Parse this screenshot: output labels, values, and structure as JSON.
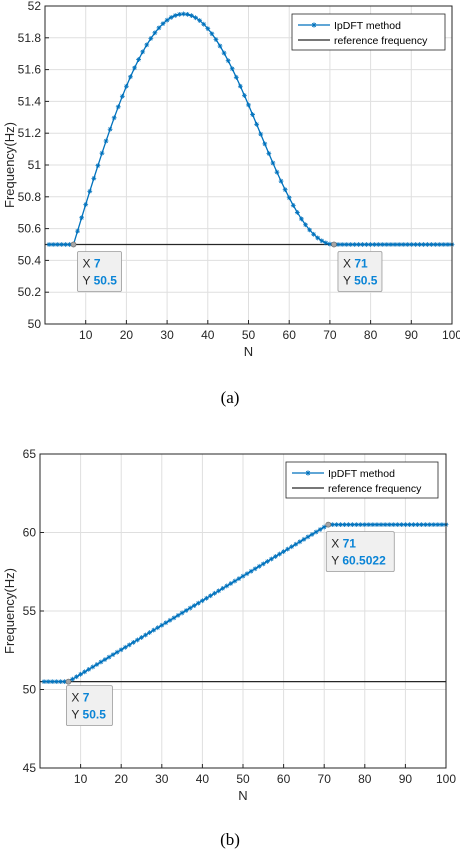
{
  "chart_data": [
    {
      "type": "line",
      "xlabel": "N",
      "ylabel": "Frequency(Hz)",
      "xlim": [
        0,
        100
      ],
      "ylim": [
        50,
        52
      ],
      "xticks": [
        10,
        20,
        30,
        40,
        50,
        60,
        70,
        80,
        90,
        100
      ],
      "yticks": [
        50,
        50.2,
        50.4,
        50.6,
        50.8,
        51,
        51.2,
        51.4,
        51.6,
        51.8,
        52
      ],
      "ytick_labels": [
        "50",
        "50.2",
        "50.4",
        "50.6",
        "50.8",
        "51",
        "51.2",
        "51.4",
        "51.6",
        "51.8",
        "52"
      ],
      "grid": true,
      "legend_position": "top-right",
      "series": [
        {
          "name": "IpDFT method",
          "color": "#0072BD",
          "marker": "star",
          "shape": "bump",
          "flat_value": 50.5,
          "rise_start": 7,
          "rise_end": 71,
          "peak_x": 34,
          "peak_value": 51.95,
          "x_range": [
            1,
            100
          ]
        },
        {
          "name": "reference frequency",
          "color": "#262626",
          "constant": 50.5
        }
      ],
      "annotations": [
        {
          "x_label": "X",
          "x_value": "7",
          "y_label": "Y",
          "y_value": "50.5",
          "point": [
            7,
            50.5
          ]
        },
        {
          "x_label": "X",
          "x_value": "71",
          "y_label": "Y",
          "y_value": "50.5",
          "point": [
            71,
            50.5
          ]
        }
      ],
      "caption": "(a)"
    },
    {
      "type": "line",
      "xlabel": "N",
      "ylabel": "Frequency(Hz)",
      "xlim": [
        0,
        100
      ],
      "ylim": [
        45,
        65
      ],
      "xticks": [
        10,
        20,
        30,
        40,
        50,
        60,
        70,
        80,
        90,
        100
      ],
      "yticks": [
        45,
        50,
        55,
        60,
        65
      ],
      "ytick_labels": [
        "45",
        "50",
        "55",
        "60",
        "65"
      ],
      "grid": true,
      "legend_position": "top-right",
      "series": [
        {
          "name": "IpDFT method",
          "color": "#0072BD",
          "marker": "star",
          "shape": "ramp",
          "start_value": 50.5,
          "end_value": 60.5022,
          "rise_start": 7,
          "rise_end": 71,
          "x_range": [
            1,
            100
          ]
        },
        {
          "name": "reference frequency",
          "color": "#262626",
          "constant": 50.5
        }
      ],
      "annotations": [
        {
          "x_label": "X",
          "x_value": "7",
          "y_label": "Y",
          "y_value": "50.5",
          "point": [
            7,
            50.5
          ]
        },
        {
          "x_label": "X",
          "x_value": "71",
          "y_label": "Y",
          "y_value": "60.5022",
          "point": [
            71,
            60.5022
          ]
        }
      ],
      "caption": "(b)"
    }
  ]
}
